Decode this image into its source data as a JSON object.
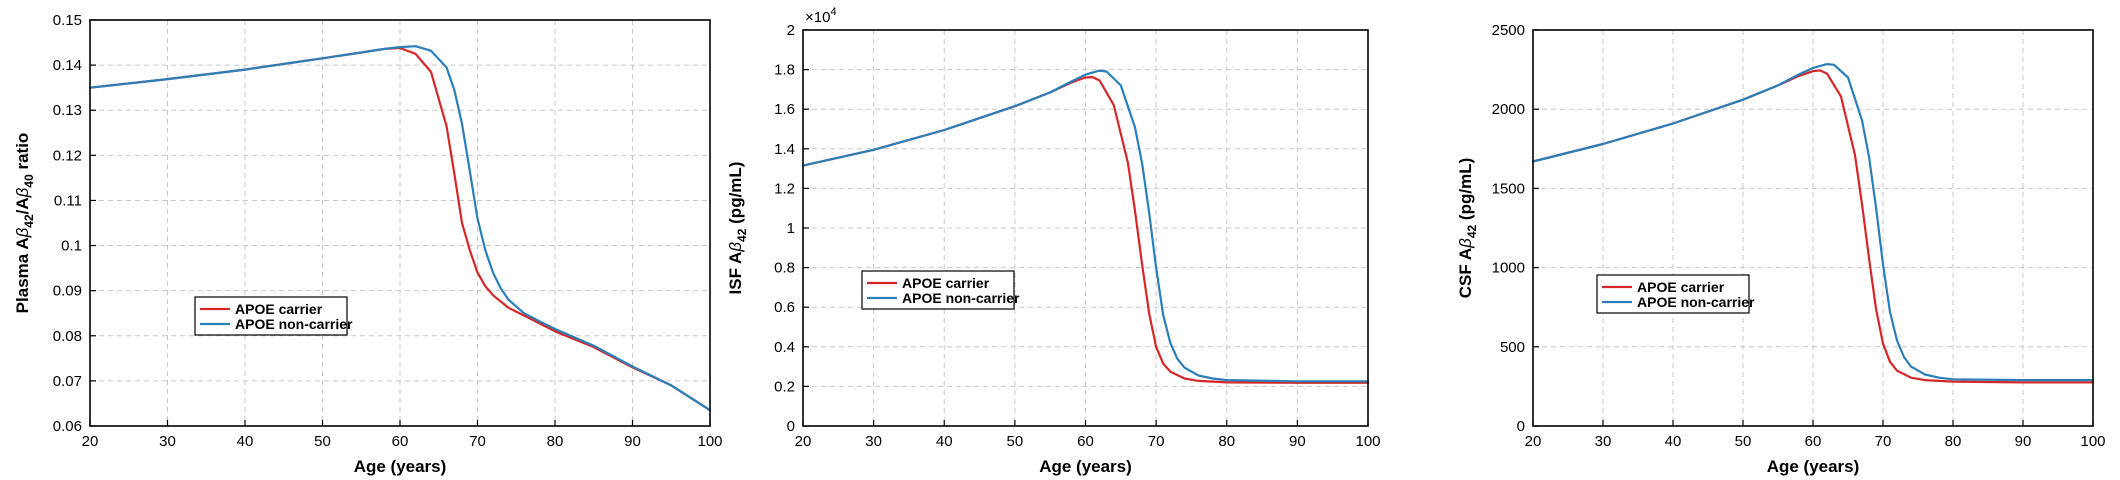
{
  "colors": {
    "carrier": "#d62728",
    "noncarrier": "#2a7fb8"
  },
  "chart_data": [
    {
      "type": "line",
      "title": "",
      "xlabel": "Age (years)",
      "ylabel": {
        "pre": "Plasma A",
        "s1": "β",
        "sub1": "42",
        "mid": "/A",
        "s2": "β",
        "sub2": "40",
        "post": " ratio"
      },
      "xlim": [
        20,
        100
      ],
      "ylim": [
        0.06,
        0.15
      ],
      "xticks": [
        "20",
        "30",
        "40",
        "50",
        "60",
        "70",
        "80",
        "90",
        "100"
      ],
      "yticks": [
        "0.06",
        "0.07",
        "0.08",
        "0.09",
        "0.1",
        "0.11",
        "0.12",
        "0.13",
        "0.14",
        "0.15"
      ],
      "exponent": "",
      "grid": true,
      "legend_position": "lower-left",
      "series": [
        {
          "name": "APOE carrier",
          "color_key": "carrier",
          "x": [
            20,
            30,
            40,
            50,
            55,
            58,
            60,
            62,
            64,
            66,
            67,
            68,
            69,
            70,
            71,
            72,
            74,
            76,
            80,
            85,
            90,
            95,
            100
          ],
          "y": [
            0.135,
            0.1369,
            0.139,
            0.1415,
            0.1428,
            0.1436,
            0.1438,
            0.1425,
            0.1385,
            0.1265,
            0.116,
            0.105,
            0.099,
            0.094,
            0.091,
            0.089,
            0.0862,
            0.0845,
            0.081,
            0.0775,
            0.073,
            0.069,
            0.0635
          ]
        },
        {
          "name": "APOE non-carrier",
          "color_key": "noncarrier",
          "x": [
            20,
            30,
            40,
            50,
            55,
            58,
            60,
            62,
            64,
            66,
            67,
            68,
            69,
            70,
            71,
            72,
            73,
            74,
            76,
            78,
            80,
            85,
            90,
            95,
            100
          ],
          "y": [
            0.135,
            0.1369,
            0.139,
            0.1415,
            0.1428,
            0.1436,
            0.144,
            0.1442,
            0.1432,
            0.1395,
            0.1345,
            0.127,
            0.1165,
            0.106,
            0.099,
            0.094,
            0.0905,
            0.088,
            0.085,
            0.0832,
            0.0815,
            0.0778,
            0.0732,
            0.069,
            0.0635
          ]
        }
      ]
    },
    {
      "type": "line",
      "title": "",
      "xlabel": "Age (years)",
      "ylabel": {
        "pre": "ISF A",
        "s1": "β",
        "sub1": "42",
        "mid": "",
        "s2": "",
        "sub2": "",
        "post": " (pg/mL)"
      },
      "xlim": [
        20,
        100
      ],
      "ylim": [
        0,
        2
      ],
      "xticks": [
        "20",
        "30",
        "40",
        "50",
        "60",
        "70",
        "80",
        "90",
        "100"
      ],
      "yticks": [
        "0",
        "0.2",
        "0.4",
        "0.6",
        "0.8",
        "1",
        "1.2",
        "1.4",
        "1.6",
        "1.8",
        "2"
      ],
      "exponent": {
        "base": "×10",
        "power": "4"
      },
      "grid": true,
      "legend_position": "mid-left",
      "series": [
        {
          "name": "APOE carrier",
          "color_key": "carrier",
          "x": [
            20,
            30,
            40,
            50,
            55,
            58,
            60,
            61,
            62,
            64,
            66,
            67,
            68,
            69,
            70,
            71,
            72,
            74,
            76,
            80,
            90,
            100
          ],
          "y": [
            1.315,
            1.395,
            1.495,
            1.615,
            1.685,
            1.735,
            1.76,
            1.762,
            1.745,
            1.62,
            1.33,
            1.09,
            0.82,
            0.57,
            0.4,
            0.315,
            0.275,
            0.24,
            0.228,
            0.22,
            0.218,
            0.218
          ]
        },
        {
          "name": "APOE non-carrier",
          "color_key": "noncarrier",
          "x": [
            20,
            30,
            40,
            50,
            55,
            58,
            60,
            62,
            63,
            65,
            67,
            68,
            69,
            70,
            71,
            72,
            73,
            74,
            76,
            78,
            80,
            90,
            100
          ],
          "y": [
            1.315,
            1.395,
            1.495,
            1.615,
            1.685,
            1.74,
            1.775,
            1.795,
            1.79,
            1.72,
            1.51,
            1.33,
            1.08,
            0.8,
            0.56,
            0.42,
            0.34,
            0.295,
            0.255,
            0.24,
            0.232,
            0.226,
            0.226
          ]
        }
      ]
    },
    {
      "type": "line",
      "title": "",
      "xlabel": "Age (years)",
      "ylabel": {
        "pre": "CSF A",
        "s1": "β",
        "sub1": "42",
        "mid": "",
        "s2": "",
        "sub2": "",
        "post": " (pg/mL)"
      },
      "xlim": [
        20,
        100
      ],
      "ylim": [
        0,
        2500
      ],
      "xticks": [
        "20",
        "30",
        "40",
        "50",
        "60",
        "70",
        "80",
        "90",
        "100"
      ],
      "yticks": [
        "0",
        "500",
        "1000",
        "1500",
        "2000",
        "2500"
      ],
      "exponent": "",
      "grid": true,
      "legend_position": "mid-left",
      "series": [
        {
          "name": "APOE carrier",
          "color_key": "carrier",
          "x": [
            20,
            30,
            40,
            50,
            55,
            58,
            60,
            61,
            62,
            64,
            66,
            67,
            68,
            69,
            70,
            71,
            72,
            74,
            76,
            80,
            90,
            100
          ],
          "y": [
            1670,
            1780,
            1910,
            2060,
            2150,
            2210,
            2240,
            2245,
            2225,
            2080,
            1710,
            1400,
            1060,
            740,
            520,
            405,
            350,
            305,
            290,
            280,
            275,
            275
          ]
        },
        {
          "name": "APOE non-carrier",
          "color_key": "noncarrier",
          "x": [
            20,
            30,
            40,
            50,
            55,
            58,
            60,
            62,
            63,
            65,
            67,
            68,
            69,
            70,
            71,
            72,
            73,
            74,
            76,
            78,
            80,
            90,
            100
          ],
          "y": [
            1670,
            1780,
            1910,
            2060,
            2150,
            2220,
            2260,
            2285,
            2280,
            2200,
            1930,
            1700,
            1380,
            1020,
            720,
            540,
            435,
            375,
            325,
            305,
            295,
            290,
            290
          ]
        }
      ]
    }
  ]
}
